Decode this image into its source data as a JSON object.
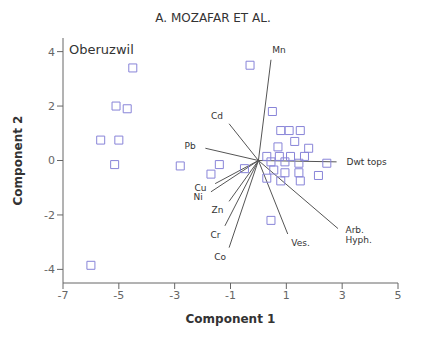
{
  "chart_data": {
    "type": "scatter",
    "title": "A. MOZAFAR ET AL.",
    "xlabel": "Component 1",
    "ylabel": "Component 2",
    "xlim": [
      -7,
      5
    ],
    "ylim": [
      -4.5,
      4.5
    ],
    "xticks": [
      -7,
      -5,
      -3,
      -1,
      1,
      3,
      5
    ],
    "yticks": [
      -4,
      -2,
      0,
      2,
      4
    ],
    "annotations": [
      "Oberuzwil"
    ],
    "marker": "square",
    "x": [
      -0.3,
      -4.5,
      -5.1,
      -4.7,
      -5.0,
      -5.65,
      -2.8,
      -1.7,
      -6.0,
      -5.15,
      0.5,
      0.8,
      1.1,
      1.5,
      1.3,
      0.7,
      1.8,
      0.3,
      0.75,
      1.15,
      1.65,
      0.45,
      0.95,
      1.45,
      2.45,
      0.55,
      0.95,
      1.45,
      2.15,
      0.3,
      0.8,
      1.5,
      0.45,
      -0.5,
      -1.4
    ],
    "values": [
      3.5,
      3.4,
      2.0,
      1.9,
      0.75,
      0.75,
      -0.2,
      -0.5,
      -3.85,
      -0.15,
      1.8,
      1.1,
      1.1,
      1.1,
      0.7,
      0.5,
      0.45,
      0.15,
      0.15,
      0.15,
      0.15,
      -0.05,
      -0.05,
      -0.1,
      -0.1,
      -0.35,
      -0.45,
      -0.45,
      -0.55,
      -0.65,
      -0.75,
      -0.75,
      -2.2,
      -0.3,
      -0.15
    ],
    "vectors": [
      {
        "label": "Mn",
        "x": 0.45,
        "y": 3.7
      },
      {
        "label": "Cd",
        "x": -1.05,
        "y": 1.35
      },
      {
        "label": "Pb",
        "x": -1.9,
        "y": 0.45
      },
      {
        "label": "Cu",
        "x": -1.55,
        "y": -0.85
      },
      {
        "label": "Ni",
        "x": -1.7,
        "y": -1.15
      },
      {
        "label": "Zn",
        "x": -1.05,
        "y": -1.5
      },
      {
        "label": "Cr",
        "x": -1.2,
        "y": -2.4
      },
      {
        "label": "Co",
        "x": -1.05,
        "y": -3.2
      },
      {
        "label": "Dwt tops",
        "x": 2.8,
        "y": -0.05
      },
      {
        "label": "Ves.",
        "x": 1.05,
        "y": -2.7
      },
      {
        "label": "Arb.\nHyph.",
        "x": 2.85,
        "y": -2.5
      }
    ]
  }
}
